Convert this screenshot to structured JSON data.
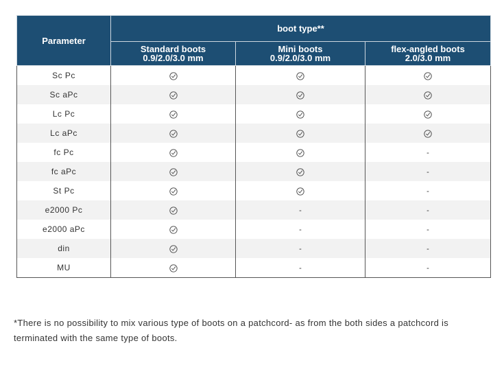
{
  "table": {
    "header": {
      "param_label": "Parameter",
      "group_label": "boot type**",
      "columns": [
        {
          "line1": "Standard boots",
          "line2": "0.9/2.0/3.0 mm"
        },
        {
          "line1": "Mini boots",
          "line2": "0.9/2.0/3.0 mm"
        },
        {
          "line1": "flex-angled boots",
          "line2": "2.0/3.0 mm"
        }
      ]
    },
    "rows": [
      {
        "param": "Sc Pc",
        "values": [
          "check",
          "check",
          "check"
        ]
      },
      {
        "param": "Sc aPc",
        "values": [
          "check",
          "check",
          "check"
        ]
      },
      {
        "param": "Lc Pc",
        "values": [
          "check",
          "check",
          "check"
        ]
      },
      {
        "param": "Lc aPc",
        "values": [
          "check",
          "check",
          "check"
        ]
      },
      {
        "param": "fc Pc",
        "values": [
          "check",
          "check",
          "-"
        ]
      },
      {
        "param": "fc aPc",
        "values": [
          "check",
          "check",
          "-"
        ]
      },
      {
        "param": "St Pc",
        "values": [
          "check",
          "check",
          "-"
        ]
      },
      {
        "param": "e2000 Pc",
        "values": [
          "check",
          "-",
          "-"
        ]
      },
      {
        "param": "e2000 aPc",
        "values": [
          "check",
          "-",
          "-"
        ]
      },
      {
        "param": "din",
        "values": [
          "check",
          "-",
          "-"
        ]
      },
      {
        "param": "MU",
        "values": [
          "check",
          "-",
          "-"
        ]
      }
    ]
  },
  "icons": {
    "check": "circled-check-icon",
    "dash": "-"
  },
  "footnote": "*There is no possibility to mix various type of boots on a patchcord- as from the both sides a patchcord is terminated with the same type of boots."
}
